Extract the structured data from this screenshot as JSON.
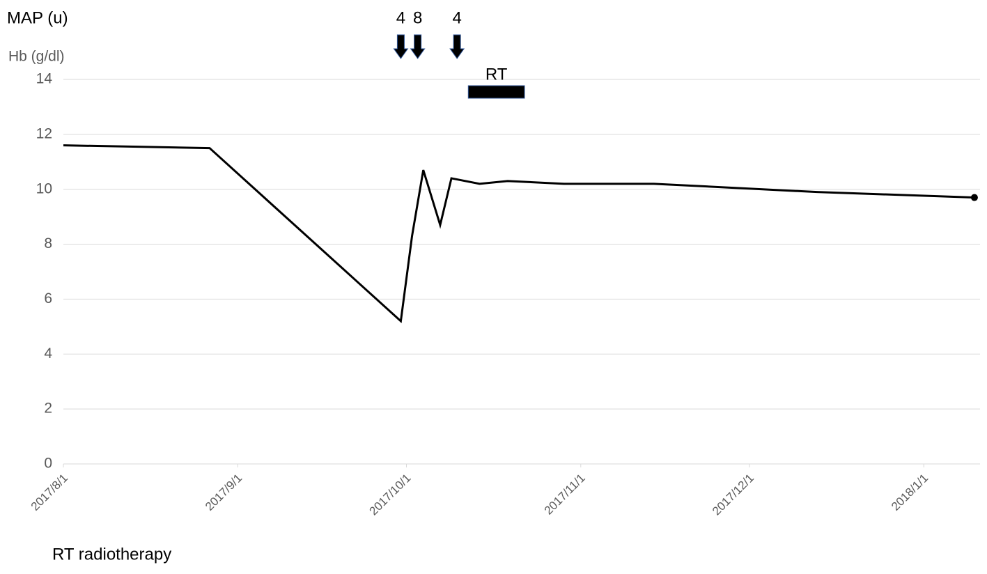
{
  "chart_data": {
    "type": "line",
    "y_label": "Hb (g/dl)",
    "x": [
      "2017/8/1",
      "2017/8/27",
      "2017/9/30",
      "2017/10/2",
      "2017/10/4",
      "2017/10/7",
      "2017/10/9",
      "2017/10/14",
      "2017/10/19",
      "2017/10/29",
      "2017/11/14",
      "2017/12/13",
      "2018/1/10"
    ],
    "series": [
      {
        "name": "Hb",
        "color": "#000000",
        "values": [
          11.6,
          11.5,
          5.2,
          8.3,
          10.7,
          8.7,
          10.4,
          10.2,
          10.3,
          10.2,
          10.2,
          9.9,
          9.7
        ]
      }
    ],
    "xlim": [
      "2017/8/1",
      "2018/1/11"
    ],
    "xticks": [
      "2017/8/1",
      "2017/9/1",
      "2017/10/1",
      "2017/11/1",
      "2017/12/1",
      "2018/1/1"
    ],
    "ylim": [
      0,
      14
    ],
    "yticks": [
      0,
      2,
      4,
      6,
      8,
      10,
      12,
      14
    ],
    "grid": true,
    "map": {
      "label": "MAP (u)",
      "x": [
        "2017/9/30",
        "2017/10/3",
        "2017/10/10"
      ],
      "values": [
        4,
        8,
        4
      ]
    },
    "rt": {
      "label": "RT",
      "start": "2017/10/12",
      "end": "2017/10/22"
    },
    "footnote": "RT radiotherapy"
  }
}
